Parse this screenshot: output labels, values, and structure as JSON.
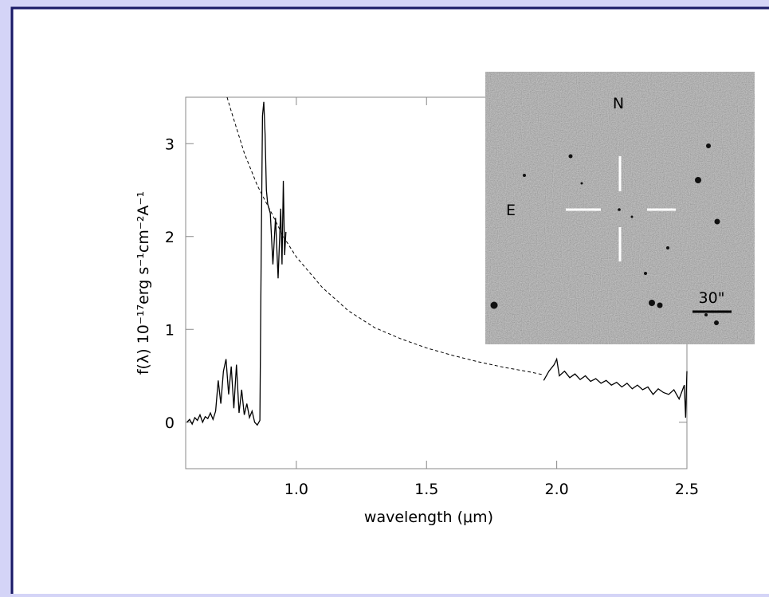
{
  "chart_data": {
    "type": "line",
    "xlabel": "wavelength (μm)",
    "ylabel": "f(λ)  10⁻¹⁷erg s⁻¹cm⁻²A⁻¹",
    "xlim": [
      0.575,
      2.5
    ],
    "ylim": [
      -0.5,
      3.5
    ],
    "xticks": [
      {
        "value": 1,
        "label": "1.0"
      },
      1.5,
      {
        "value": 2,
        "label": "2.0"
      },
      2.5
    ],
    "yticks": [
      0,
      1,
      2,
      3
    ],
    "annotations": [
      "N",
      "E",
      "30\""
    ],
    "series": [
      {
        "color": "#000000",
        "dashed": false,
        "x": [
          0.58,
          0.59,
          0.6,
          0.61,
          0.62,
          0.63,
          0.64,
          0.65,
          0.66,
          0.67,
          0.68,
          0.69,
          0.7,
          0.71,
          0.72,
          0.73,
          0.74,
          0.75,
          0.76,
          0.77,
          0.78,
          0.79,
          0.8,
          0.81,
          0.82,
          0.83,
          0.84,
          0.85,
          0.86,
          0.865,
          0.87,
          0.875,
          0.88,
          0.885,
          0.89,
          0.9,
          0.91,
          0.92,
          0.93,
          0.94,
          0.945,
          0.95,
          0.955,
          0.96,
          1.5,
          1.95,
          1.97,
          1.99,
          2.0,
          2.01,
          2.03,
          2.05,
          2.07,
          2.09,
          2.11,
          2.13,
          2.15,
          2.17,
          2.19,
          2.21,
          2.23,
          2.25,
          2.27,
          2.29,
          2.31,
          2.33,
          2.35,
          2.37,
          2.39,
          2.41,
          2.43,
          2.45,
          2.47,
          2.49,
          2.495,
          2.5
        ],
        "values": [
          0.0,
          0.03,
          -0.02,
          0.05,
          0.02,
          0.08,
          0.0,
          0.06,
          0.04,
          0.1,
          0.03,
          0.12,
          0.45,
          0.2,
          0.55,
          0.68,
          0.3,
          0.6,
          0.15,
          0.62,
          0.1,
          0.35,
          0.08,
          0.2,
          0.05,
          0.12,
          0.0,
          -0.03,
          0.02,
          1.8,
          3.3,
          3.45,
          3.1,
          2.5,
          2.35,
          2.25,
          1.7,
          2.2,
          1.55,
          2.3,
          1.7,
          2.6,
          1.8,
          2.05,
          null,
          0.45,
          0.55,
          0.62,
          0.68,
          0.5,
          0.55,
          0.48,
          0.52,
          0.46,
          0.5,
          0.44,
          0.47,
          0.42,
          0.45,
          0.4,
          0.43,
          0.38,
          0.42,
          0.36,
          0.4,
          0.35,
          0.38,
          0.3,
          0.36,
          0.32,
          0.3,
          0.35,
          0.25,
          0.4,
          0.05,
          0.55
        ]
      },
      {
        "color": "#000000",
        "dashed": true,
        "x": [
          0.734,
          0.75,
          0.8,
          0.85,
          0.9,
          0.95,
          1.0,
          1.1,
          1.2,
          1.3,
          1.4,
          1.5,
          1.6,
          1.7,
          1.8,
          1.9,
          1.95
        ],
        "values": [
          3.5,
          3.35,
          2.9,
          2.55,
          2.28,
          2.0,
          1.78,
          1.45,
          1.2,
          1.02,
          0.9,
          0.8,
          0.72,
          0.65,
          0.59,
          0.54,
          0.51
        ]
      }
    ]
  }
}
